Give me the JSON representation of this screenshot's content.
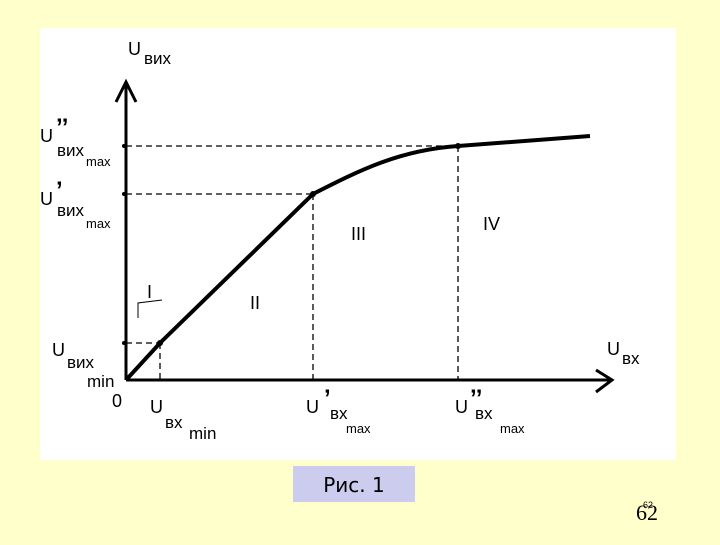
{
  "axes": {
    "y_title": {
      "base": "U",
      "sub": "вих"
    },
    "x_title": {
      "base": "U",
      "sub": "вх"
    },
    "origin": "0"
  },
  "y_labels": [
    {
      "base": "U",
      "prime": "’’",
      "sub": "вих",
      "subsub": "max"
    },
    {
      "base": "U",
      "prime": "’",
      "sub": "вих",
      "subsub": "max"
    },
    {
      "base": "U",
      "sub": "вих",
      "subsub": "min"
    }
  ],
  "x_labels": [
    {
      "base": "U",
      "sub": "вх",
      "subsub": "min"
    },
    {
      "base": "U",
      "prime": "’",
      "sub": "вх",
      "subsub": "max"
    },
    {
      "base": "U",
      "prime": "’’",
      "sub": "вх",
      "subsub": "max"
    }
  ],
  "regions": [
    "I",
    "II",
    "III",
    "IV"
  ],
  "caption": "Рис. 1",
  "page_number": "62",
  "page_number_small": "62"
}
